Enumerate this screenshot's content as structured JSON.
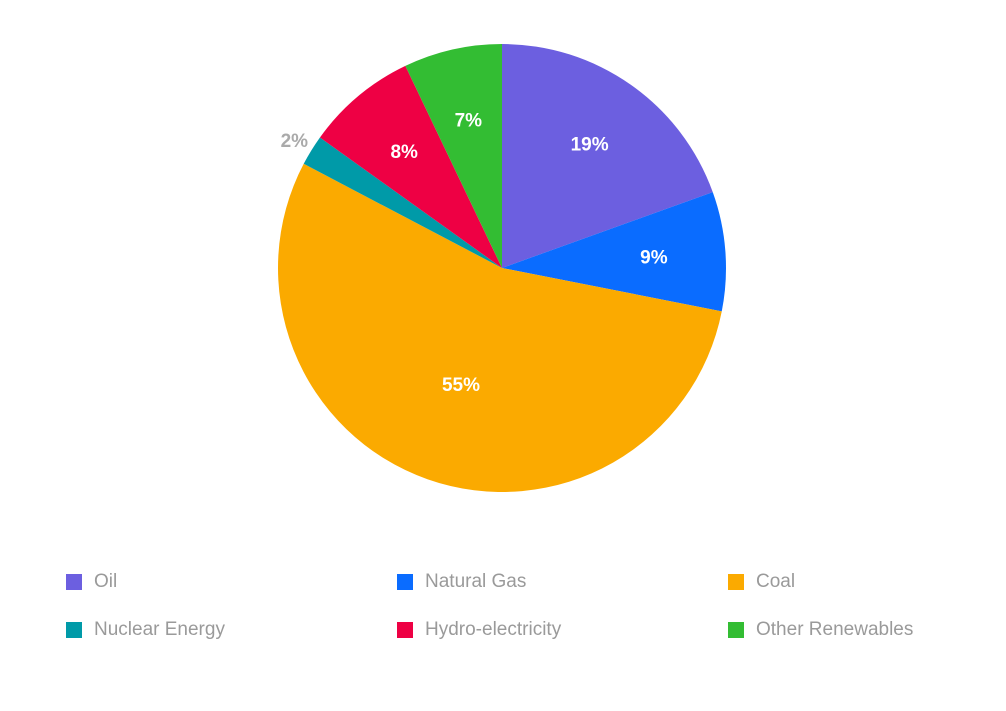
{
  "chart_data": {
    "type": "pie",
    "title": "",
    "start_angle": "top",
    "direction": "clockwise",
    "slices": [
      {
        "label": "Oil",
        "value": 19.5,
        "display": "19%",
        "color": "#6c5fe0"
      },
      {
        "label": "Natural Gas",
        "value": 8.6,
        "display": "9%",
        "color": "#0a6cff"
      },
      {
        "label": "Coal",
        "value": 54.6,
        "display": "55%",
        "color": "#fbaa00"
      },
      {
        "label": "Nuclear Energy",
        "value": 2.2,
        "display": "2%",
        "color": "#009aa8"
      },
      {
        "label": "Hydro-electricity",
        "value": 8.0,
        "display": "8%",
        "color": "#ee0044"
      },
      {
        "label": "Other Renewables",
        "value": 7.1,
        "display": "7%",
        "color": "#33bd33"
      }
    ],
    "legend": "bottom"
  }
}
